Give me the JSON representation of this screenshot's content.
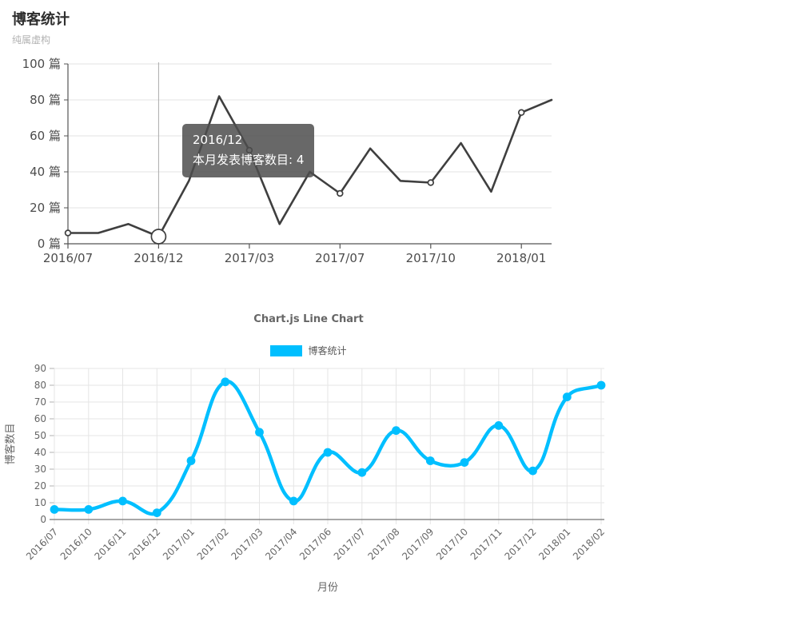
{
  "page": {
    "title": "博客统计",
    "subtitle": "纯属虚构"
  },
  "chart_data": [
    {
      "type": "line",
      "name": "blog-stats-custom-line-chart",
      "categories": [
        "2016/07",
        "2016/10",
        "2016/11",
        "2016/12",
        "2017/01",
        "2017/02",
        "2017/03",
        "2017/04",
        "2017/06",
        "2017/07",
        "2017/08",
        "2017/09",
        "2017/10",
        "2017/11",
        "2017/12",
        "2018/01",
        "2018/02"
      ],
      "values": [
        6,
        6,
        11,
        4,
        35,
        82,
        52,
        11,
        40,
        28,
        53,
        35,
        34,
        56,
        29,
        73,
        80
      ],
      "ylim": [
        0,
        100
      ],
      "y_step": 20,
      "y_tick_labels": [
        "0 篇",
        "20 篇",
        "40 篇",
        "60 篇",
        "80 篇",
        "100 篇"
      ],
      "x_ticks": [
        {
          "index": 0,
          "label": "2016/07"
        },
        {
          "index": 3,
          "label": "2016/12"
        },
        {
          "index": 6,
          "label": "2017/03"
        },
        {
          "index": 9,
          "label": "2017/07"
        },
        {
          "index": 12,
          "label": "2017/10"
        },
        {
          "index": 15,
          "label": "2018/01"
        }
      ],
      "marker_indices": [
        0,
        3,
        6,
        9,
        12,
        15
      ],
      "highlight": {
        "index": 3,
        "value": 4
      },
      "tooltip": {
        "title": "2016/12",
        "text": "本月发表博客数目: 4"
      },
      "line_color": "#3f3f3f",
      "grid": "horizontal",
      "legend_position": "none"
    },
    {
      "type": "line",
      "name": "chartjs-line-chart",
      "title": "Chart.js Line Chart",
      "legend": [
        {
          "label": "博客统计",
          "color": "#00bfff"
        }
      ],
      "legend_position": "top",
      "categories": [
        "2016/07",
        "2016/10",
        "2016/11",
        "2016/12",
        "2017/01",
        "2017/02",
        "2017/03",
        "2017/04",
        "2017/06",
        "2017/07",
        "2017/08",
        "2017/09",
        "2017/10",
        "2017/11",
        "2017/12",
        "2018/01",
        "2018/02"
      ],
      "values": [
        6,
        6,
        11,
        4,
        35,
        82,
        52,
        11,
        40,
        28,
        53,
        35,
        34,
        56,
        29,
        73,
        80
      ],
      "ylim": [
        0,
        90
      ],
      "y_step": 10,
      "y_tick_labels": [
        "0",
        "10",
        "20",
        "30",
        "40",
        "50",
        "60",
        "70",
        "80",
        "90"
      ],
      "xlabel": "月份",
      "ylabel": "博客数目",
      "line_color": "#00bfff",
      "smooth": true,
      "grid": "both"
    }
  ]
}
